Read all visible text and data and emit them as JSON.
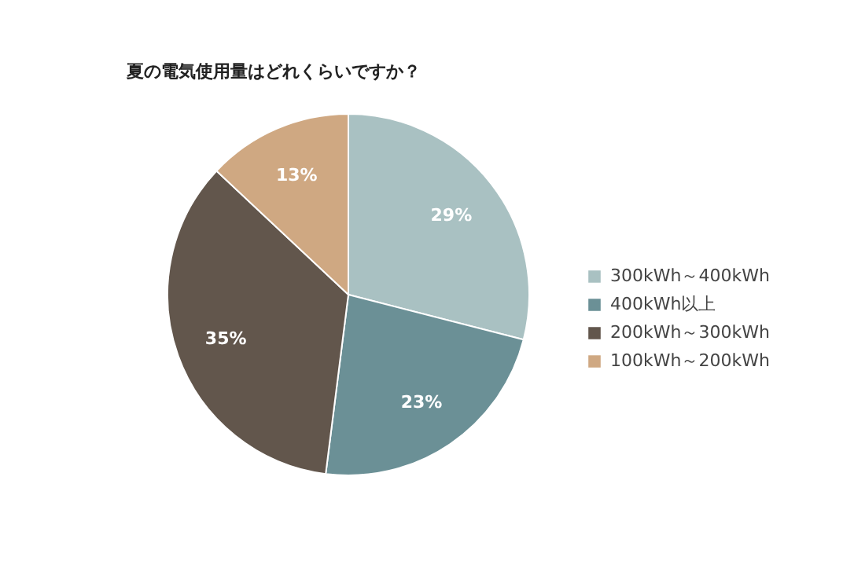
{
  "chart_data": {
    "type": "pie",
    "title": "夏の電気使用量はどれくらいですか？",
    "categories": [
      "300kWh～400kWh",
      "400kWh以上",
      "200kWh～300kWh",
      "100kWh～200kWh"
    ],
    "values": [
      29,
      23,
      35,
      13
    ],
    "colors": [
      "#a9c1c2",
      "#6b9096",
      "#62564c",
      "#cfa882"
    ],
    "value_labels": [
      "29%",
      "23%",
      "35%",
      "13%"
    ],
    "legend": "right"
  }
}
